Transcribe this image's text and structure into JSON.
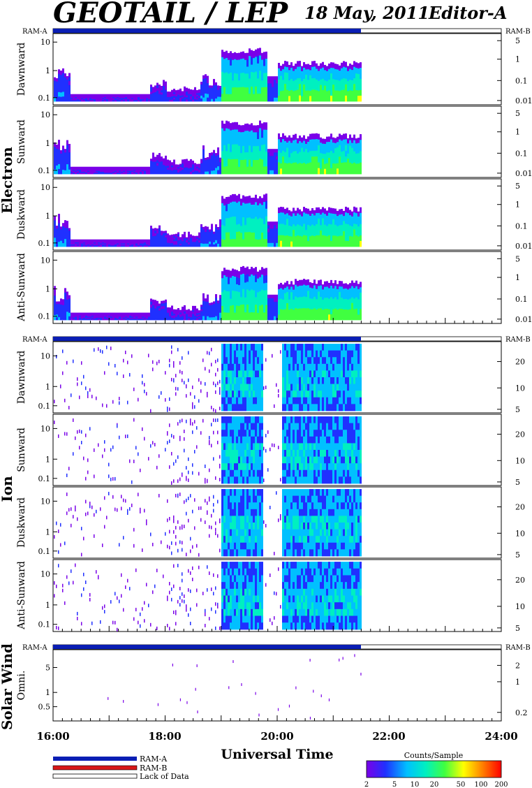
{
  "header": {
    "title": "GEOTAIL / LEP",
    "date": "18 May, 2011",
    "editor": "Editor-A"
  },
  "groups": {
    "electron": "Electron",
    "ion": "Ion",
    "solar_wind": "Solar Wind"
  },
  "ram_labels": {
    "left": "RAM-A",
    "right": "RAM-B"
  },
  "xaxis": {
    "title": "Universal Time",
    "ticks": [
      "16:00",
      "18:00",
      "20:00",
      "22:00",
      "24:00"
    ]
  },
  "legend": {
    "items": [
      "RAM-A",
      "RAM-B",
      "Lack of Data"
    ],
    "colors": [
      "#0a1eb4",
      "#d81818",
      "#ffffff"
    ]
  },
  "colorbar": {
    "title": "Counts/Sample",
    "ticks": [
      "2",
      "5",
      "10",
      "20",
      "50",
      "100",
      "200"
    ],
    "colors": [
      "#7a00e8",
      "#2030ff",
      "#00c0ff",
      "#00f0c0",
      "#40ff40",
      "#ffff00",
      "#ff8000",
      "#ff0000"
    ]
  },
  "colors": {
    "ram_a_bar": "#0a1eb4",
    "background": "#ffffff"
  },
  "chart_data": {
    "type": "heatmap",
    "x_range": [
      "16:00",
      "24:00"
    ],
    "data_coverage": [
      "16:00",
      "21:30"
    ],
    "panels": [
      {
        "label": "Dawnward",
        "group": "Electron",
        "left_ticks": [
          "10",
          "1",
          "0.1"
        ],
        "right_ticks": [
          "5",
          "1",
          "0.1",
          "0.01"
        ]
      },
      {
        "label": "Sunward",
        "group": "Electron",
        "left_ticks": [
          "10",
          "1",
          "0.1"
        ],
        "right_ticks": [
          "5",
          "1",
          "0.1",
          "0.01"
        ]
      },
      {
        "label": "Duskward",
        "group": "Electron",
        "left_ticks": [
          "10",
          "1",
          "0.1"
        ],
        "right_ticks": [
          "5",
          "1",
          "0.1",
          "0.01"
        ]
      },
      {
        "label": "Anti-Sunward",
        "group": "Electron",
        "left_ticks": [
          "10",
          "1",
          "0.1"
        ],
        "right_ticks": [
          "5",
          "1",
          "0.1",
          "0.01"
        ]
      },
      {
        "label": "Dawnward",
        "group": "Ion",
        "left_ticks": [
          "10",
          "1",
          "0.1"
        ],
        "right_ticks": [
          "20",
          "10",
          "5"
        ]
      },
      {
        "label": "Sunward",
        "group": "Ion",
        "left_ticks": [
          "10",
          "1",
          "0.1"
        ],
        "right_ticks": [
          "20",
          "10",
          "5"
        ]
      },
      {
        "label": "Duskward",
        "group": "Ion",
        "left_ticks": [
          "10",
          "1",
          "0.1"
        ],
        "right_ticks": [
          "20",
          "10",
          "5"
        ]
      },
      {
        "label": "Anti-Sunward",
        "group": "Ion",
        "left_ticks": [
          "10",
          "1",
          "0.1"
        ],
        "right_ticks": [
          "20",
          "10",
          "5"
        ]
      },
      {
        "label": "Omni.",
        "group": "Solar Wind",
        "left_ticks": [
          "5",
          "1",
          "0.5"
        ],
        "right_ticks": [
          "2",
          "1",
          "0.2"
        ]
      }
    ]
  }
}
